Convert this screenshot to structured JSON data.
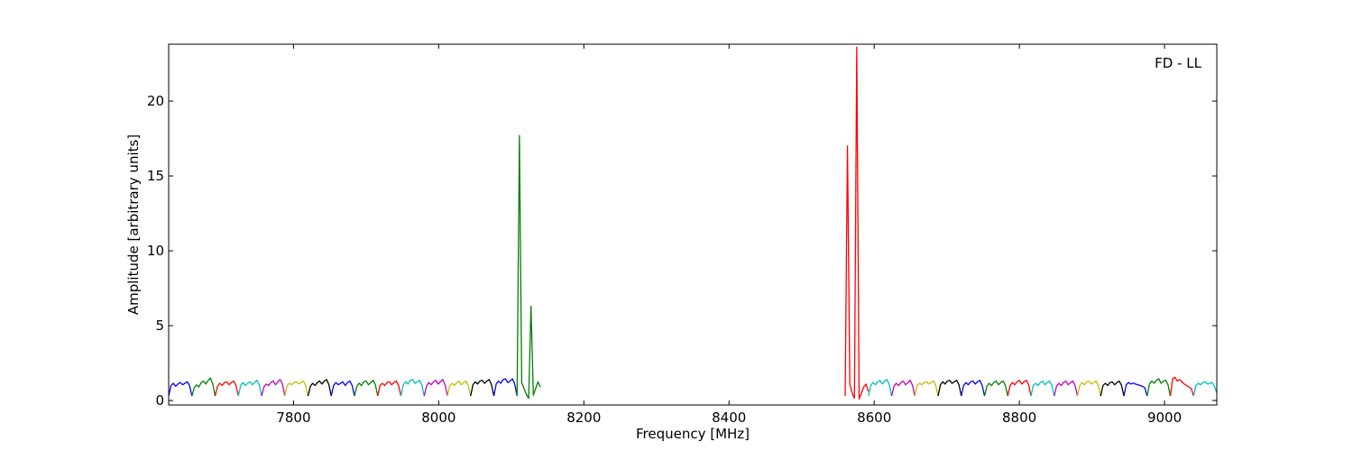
{
  "chart_data": {
    "type": "line",
    "title": "",
    "annotation": "FD - LL",
    "xlabel": "Frequency [MHz]",
    "ylabel": "Amplitude [arbitrary units]",
    "xlim": [
      7628,
      9072
    ],
    "ylim": [
      -0.3,
      23.8
    ],
    "xticks": [
      7800,
      8000,
      8200,
      8400,
      8600,
      8800,
      9000
    ],
    "yticks": [
      0,
      5,
      10,
      15,
      20
    ],
    "grid": false,
    "legend": "none",
    "channel_width_mhz": 32,
    "series": [
      {
        "color": "#0000ff",
        "x_start": 7628,
        "x_end": 7660,
        "values": [
          0.3,
          1.0,
          1.15,
          0.95,
          1.1,
          1.2,
          1.05,
          1.15,
          1.25,
          1.0,
          0.3
        ]
      },
      {
        "color": "#008000",
        "x_start": 7660,
        "x_end": 7692,
        "values": [
          0.3,
          0.85,
          1.05,
          0.9,
          1.2,
          1.3,
          1.1,
          1.35,
          1.5,
          1.1,
          0.3
        ]
      },
      {
        "color": "#ff0000",
        "x_start": 7692,
        "x_end": 7724,
        "values": [
          0.3,
          0.95,
          1.15,
          1.0,
          1.2,
          1.25,
          1.05,
          1.2,
          1.3,
          1.0,
          0.3
        ]
      },
      {
        "color": "#00bfbf",
        "x_start": 7724,
        "x_end": 7756,
        "values": [
          0.3,
          1.0,
          1.2,
          1.0,
          1.15,
          1.25,
          1.05,
          1.2,
          1.35,
          1.05,
          0.3
        ]
      },
      {
        "color": "#bf00bf",
        "x_start": 7756,
        "x_end": 7788,
        "values": [
          0.3,
          0.9,
          1.1,
          1.0,
          1.2,
          1.3,
          1.05,
          1.25,
          1.4,
          1.1,
          0.3
        ]
      },
      {
        "color": "#bfbf00",
        "x_start": 7788,
        "x_end": 7820,
        "values": [
          0.3,
          1.0,
          1.15,
          1.05,
          1.2,
          1.25,
          1.1,
          1.2,
          1.3,
          1.0,
          0.3
        ]
      },
      {
        "color": "#000000",
        "x_start": 7820,
        "x_end": 7852,
        "values": [
          0.3,
          0.95,
          1.15,
          1.0,
          1.2,
          1.3,
          1.1,
          1.3,
          1.4,
          1.05,
          0.3
        ]
      },
      {
        "color": "#0000ff",
        "x_start": 7852,
        "x_end": 7884,
        "values": [
          0.3,
          1.0,
          1.2,
          1.05,
          1.15,
          1.25,
          1.0,
          1.2,
          1.3,
          1.0,
          0.3
        ]
      },
      {
        "color": "#008000",
        "x_start": 7884,
        "x_end": 7916,
        "values": [
          0.3,
          0.95,
          1.15,
          1.0,
          1.25,
          1.3,
          1.05,
          1.2,
          1.35,
          1.05,
          0.3
        ]
      },
      {
        "color": "#ff0000",
        "x_start": 7916,
        "x_end": 7948,
        "values": [
          0.3,
          1.0,
          1.15,
          1.0,
          1.2,
          1.25,
          1.05,
          1.2,
          1.3,
          1.0,
          0.3
        ]
      },
      {
        "color": "#00bfbf",
        "x_start": 7948,
        "x_end": 7980,
        "values": [
          0.3,
          1.05,
          1.25,
          1.1,
          1.35,
          1.4,
          1.15,
          1.25,
          1.35,
          1.05,
          0.3
        ]
      },
      {
        "color": "#bf00bf",
        "x_start": 7980,
        "x_end": 8012,
        "values": [
          0.3,
          0.95,
          1.2,
          1.05,
          1.25,
          1.35,
          1.1,
          1.25,
          1.4,
          1.05,
          0.3
        ]
      },
      {
        "color": "#bfbf00",
        "x_start": 8012,
        "x_end": 8044,
        "values": [
          0.3,
          1.0,
          1.15,
          1.0,
          1.2,
          1.3,
          1.05,
          1.2,
          1.3,
          1.0,
          0.3
        ]
      },
      {
        "color": "#000000",
        "x_start": 8044,
        "x_end": 8076,
        "values": [
          0.3,
          1.05,
          1.25,
          1.1,
          1.3,
          1.35,
          1.15,
          1.3,
          1.4,
          1.05,
          0.3
        ]
      },
      {
        "color": "#0000ff",
        "x_start": 8076,
        "x_end": 8108,
        "values": [
          0.3,
          1.1,
          1.3,
          1.15,
          1.4,
          1.45,
          1.2,
          1.3,
          1.45,
          1.1,
          0.3
        ]
      },
      {
        "color": "#008000",
        "x_start": 8108,
        "x_end": 8140,
        "values": [
          0.3,
          17.7,
          1.2,
          0.8,
          0.4,
          0.15,
          6.3,
          0.35,
          0.8,
          1.25,
          0.9
        ]
      },
      {
        "color": "#ff0000",
        "x_start": 8560,
        "x_end": 8592,
        "values": [
          0.3,
          17.0,
          1.1,
          0.5,
          0.15,
          23.6,
          0.1,
          0.5,
          0.9,
          1.1,
          0.6
        ]
      },
      {
        "color": "#00bfbf",
        "x_start": 8592,
        "x_end": 8624,
        "values": [
          0.3,
          1.0,
          1.2,
          1.05,
          1.25,
          1.35,
          1.1,
          1.3,
          1.4,
          1.05,
          0.3
        ]
      },
      {
        "color": "#bf00bf",
        "x_start": 8624,
        "x_end": 8656,
        "values": [
          0.3,
          0.95,
          1.15,
          1.0,
          1.2,
          1.3,
          1.05,
          1.2,
          1.35,
          1.0,
          0.3
        ]
      },
      {
        "color": "#bfbf00",
        "x_start": 8656,
        "x_end": 8688,
        "values": [
          0.3,
          1.0,
          1.15,
          1.05,
          1.2,
          1.25,
          1.1,
          1.2,
          1.3,
          1.0,
          0.3
        ]
      },
      {
        "color": "#000000",
        "x_start": 8688,
        "x_end": 8720,
        "values": [
          0.3,
          1.05,
          1.25,
          1.1,
          1.3,
          1.35,
          1.15,
          1.25,
          1.35,
          1.05,
          0.3
        ]
      },
      {
        "color": "#0000ff",
        "x_start": 8720,
        "x_end": 8752,
        "values": [
          0.3,
          1.0,
          1.2,
          1.05,
          1.25,
          1.3,
          1.1,
          1.25,
          1.35,
          1.0,
          0.3
        ]
      },
      {
        "color": "#008000",
        "x_start": 8752,
        "x_end": 8784,
        "values": [
          0.3,
          0.95,
          1.15,
          1.0,
          1.2,
          1.3,
          1.05,
          1.2,
          1.3,
          1.0,
          0.3
        ]
      },
      {
        "color": "#ff0000",
        "x_start": 8784,
        "x_end": 8816,
        "values": [
          0.3,
          1.0,
          1.2,
          1.05,
          1.25,
          1.35,
          1.1,
          1.25,
          1.35,
          1.05,
          0.3
        ]
      },
      {
        "color": "#00bfbf",
        "x_start": 8816,
        "x_end": 8848,
        "values": [
          0.3,
          1.0,
          1.15,
          1.0,
          1.2,
          1.3,
          1.05,
          1.2,
          1.3,
          1.0,
          0.3
        ]
      },
      {
        "color": "#bf00bf",
        "x_start": 8848,
        "x_end": 8880,
        "values": [
          0.3,
          0.95,
          1.15,
          1.0,
          1.2,
          1.3,
          1.05,
          1.2,
          1.3,
          1.0,
          0.3
        ]
      },
      {
        "color": "#bfbf00",
        "x_start": 8880,
        "x_end": 8912,
        "values": [
          0.3,
          1.0,
          1.2,
          1.05,
          1.25,
          1.3,
          1.1,
          1.2,
          1.3,
          1.0,
          0.3
        ]
      },
      {
        "color": "#000000",
        "x_start": 8912,
        "x_end": 8944,
        "values": [
          0.3,
          1.0,
          1.15,
          1.0,
          1.2,
          1.25,
          1.05,
          1.2,
          1.3,
          1.0,
          0.3
        ]
      },
      {
        "color": "#0000ff",
        "x_start": 8944,
        "x_end": 8976,
        "values": [
          0.3,
          1.05,
          1.2,
          1.1,
          1.15,
          1.1,
          1.05,
          1.0,
          0.95,
          0.85,
          0.3
        ]
      },
      {
        "color": "#008000",
        "x_start": 8976,
        "x_end": 9008,
        "values": [
          0.3,
          1.1,
          1.3,
          1.15,
          1.35,
          1.45,
          1.15,
          1.3,
          1.35,
          1.05,
          0.3
        ]
      },
      {
        "color": "#ff0000",
        "x_start": 9008,
        "x_end": 9040,
        "values": [
          0.3,
          1.45,
          1.55,
          1.3,
          1.4,
          1.25,
          1.1,
          1.0,
          0.9,
          0.8,
          0.3
        ]
      },
      {
        "color": "#00bfbf",
        "x_start": 9040,
        "x_end": 9072,
        "values": [
          0.3,
          1.0,
          1.15,
          1.05,
          1.2,
          1.25,
          1.1,
          1.15,
          1.2,
          0.95,
          0.5
        ]
      }
    ]
  }
}
